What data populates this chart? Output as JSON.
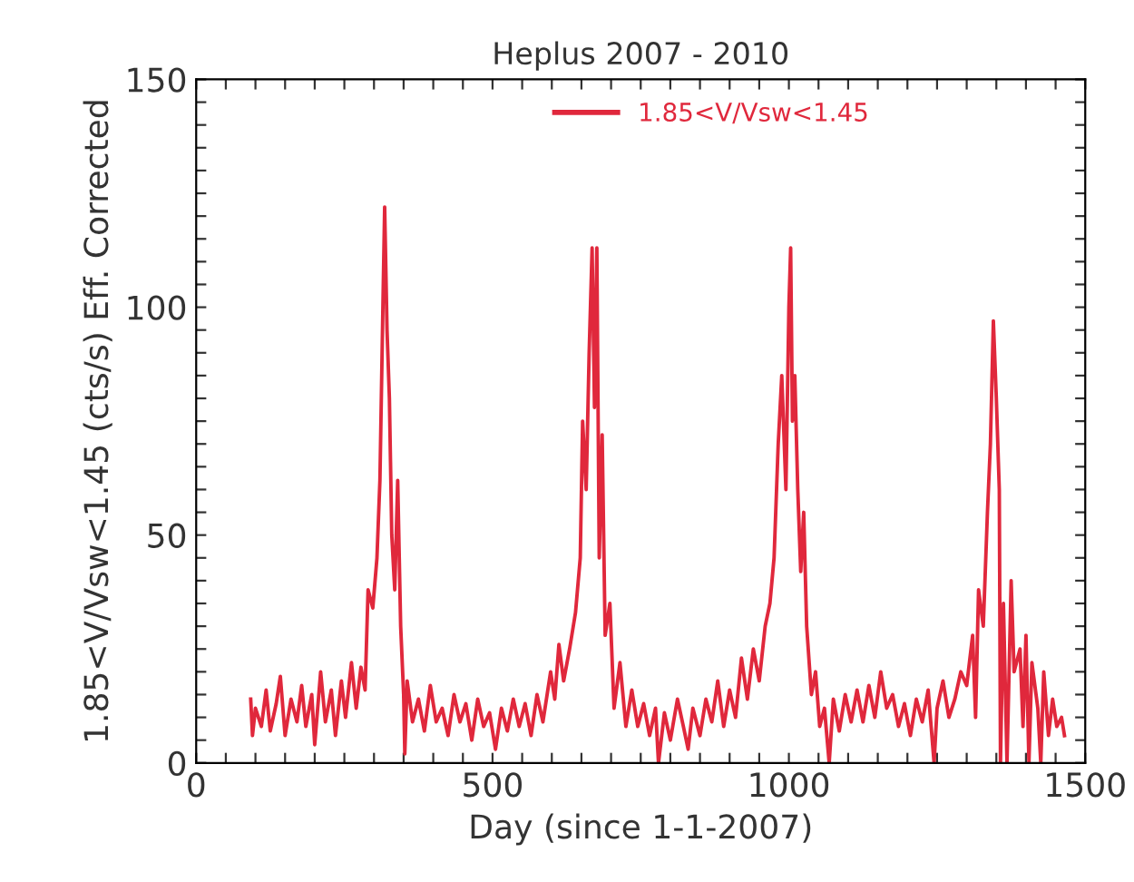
{
  "chart_data": {
    "type": "line",
    "title": "Heplus 2007 - 2010",
    "xlabel": "Day (since 1-1-2007)",
    "ylabel": "1.85<V/Vsw<1.45 (cts/s) Eff. Corrected",
    "xlim": [
      0,
      1500
    ],
    "ylim": [
      0,
      150
    ],
    "xticks": [
      0,
      {
        "value": 50,
        "label": null
      },
      {
        "value": 100,
        "label": null
      },
      {
        "value": 150,
        "label": null
      },
      {
        "value": 200,
        "label": null
      },
      {
        "value": 250,
        "label": null
      },
      {
        "value": 300,
        "label": null
      },
      {
        "value": 350,
        "label": null
      },
      {
        "value": 400,
        "label": null
      },
      {
        "value": 450,
        "label": null
      },
      500,
      {
        "value": 550,
        "label": null
      },
      {
        "value": 600,
        "label": null
      },
      {
        "value": 650,
        "label": null
      },
      {
        "value": 700,
        "label": null
      },
      {
        "value": 750,
        "label": null
      },
      {
        "value": 800,
        "label": null
      },
      {
        "value": 850,
        "label": null
      },
      {
        "value": 900,
        "label": null
      },
      {
        "value": 950,
        "label": null
      },
      1000,
      {
        "value": 1050,
        "label": null
      },
      {
        "value": 1100,
        "label": null
      },
      {
        "value": 1150,
        "label": null
      },
      {
        "value": 1200,
        "label": null
      },
      {
        "value": 1250,
        "label": null
      },
      {
        "value": 1300,
        "label": null
      },
      {
        "value": 1350,
        "label": null
      },
      {
        "value": 1400,
        "label": null
      },
      {
        "value": 1450,
        "label": null
      },
      1500
    ],
    "yticks": [
      0,
      {
        "value": 5,
        "label": null
      },
      {
        "value": 10,
        "label": null
      },
      {
        "value": 15,
        "label": null
      },
      {
        "value": 20,
        "label": null
      },
      {
        "value": 25,
        "label": null
      },
      {
        "value": 30,
        "label": null
      },
      {
        "value": 35,
        "label": null
      },
      {
        "value": 40,
        "label": null
      },
      {
        "value": 45,
        "label": null
      },
      50,
      {
        "value": 55,
        "label": null
      },
      {
        "value": 60,
        "label": null
      },
      {
        "value": 65,
        "label": null
      },
      {
        "value": 70,
        "label": null
      },
      {
        "value": 75,
        "label": null
      },
      {
        "value": 80,
        "label": null
      },
      {
        "value": 85,
        "label": null
      },
      {
        "value": 90,
        "label": null
      },
      {
        "value": 95,
        "label": null
      },
      100,
      {
        "value": 105,
        "label": null
      },
      {
        "value": 110,
        "label": null
      },
      {
        "value": 115,
        "label": null
      },
      {
        "value": 120,
        "label": null
      },
      {
        "value": 125,
        "label": null
      },
      {
        "value": 130,
        "label": null
      },
      {
        "value": 135,
        "label": null
      },
      {
        "value": 140,
        "label": null
      },
      {
        "value": 145,
        "label": null
      },
      150
    ],
    "grid": false,
    "legend": "top",
    "marker": "none",
    "line_style": "solid",
    "series": [
      {
        "name": "1.85<V/Vsw<1.45",
        "color": "#e0283c",
        "x": [
          92,
          95,
          100,
          110,
          118,
          125,
          135,
          142,
          150,
          160,
          170,
          178,
          185,
          195,
          200,
          210,
          218,
          228,
          235,
          245,
          252,
          262,
          270,
          278,
          285,
          290,
          298,
          305,
          310,
          315,
          318,
          322,
          326,
          330,
          335,
          340,
          345,
          350,
          352,
          356,
          365,
          375,
          385,
          395,
          405,
          415,
          425,
          435,
          445,
          455,
          465,
          475,
          485,
          495,
          505,
          515,
          525,
          535,
          545,
          555,
          565,
          575,
          585,
          598,
          605,
          612,
          620,
          630,
          640,
          648,
          652,
          658,
          663,
          668,
          672,
          676,
          680,
          685,
          690,
          698,
          705,
          715,
          725,
          735,
          745,
          755,
          765,
          775,
          780,
          790,
          800,
          812,
          822,
          830,
          838,
          850,
          860,
          870,
          880,
          890,
          900,
          910,
          920,
          930,
          940,
          950,
          960,
          968,
          975,
          982,
          988,
          995,
          1000,
          1003,
          1006,
          1010,
          1015,
          1020,
          1025,
          1030,
          1038,
          1045,
          1052,
          1060,
          1068,
          1075,
          1085,
          1095,
          1105,
          1115,
          1125,
          1135,
          1145,
          1155,
          1165,
          1175,
          1185,
          1195,
          1205,
          1215,
          1225,
          1235,
          1245,
          1250,
          1260,
          1270,
          1280,
          1290,
          1300,
          1310,
          1315,
          1320,
          1328,
          1335,
          1340,
          1345,
          1350,
          1355,
          1357,
          1362,
          1368,
          1375,
          1380,
          1390,
          1395,
          1400,
          1405,
          1410,
          1420,
          1425,
          1430,
          1438,
          1445,
          1452,
          1460,
          1465
        ],
        "values": [
          14,
          6,
          12,
          8,
          16,
          7,
          13,
          19,
          6,
          14,
          9,
          17,
          8,
          15,
          4,
          20,
          9,
          16,
          6,
          18,
          10,
          22,
          12,
          21,
          16,
          38,
          34,
          45,
          62,
          100,
          122,
          95,
          80,
          50,
          38,
          62,
          30,
          15,
          2,
          18,
          9,
          14,
          7,
          17,
          9,
          12,
          6,
          15,
          9,
          13,
          5,
          14,
          8,
          11,
          3,
          12,
          7,
          14,
          8,
          13,
          6,
          15,
          9,
          20,
          14,
          26,
          18,
          25,
          33,
          45,
          75,
          60,
          90,
          113,
          78,
          113,
          45,
          72,
          28,
          35,
          12,
          22,
          8,
          16,
          8,
          13,
          6,
          12,
          0,
          11,
          5,
          14,
          8,
          3,
          12,
          6,
          14,
          9,
          18,
          8,
          16,
          10,
          23,
          14,
          25,
          18,
          30,
          35,
          45,
          70,
          85,
          60,
          100,
          113,
          75,
          85,
          60,
          42,
          55,
          30,
          15,
          20,
          8,
          12,
          0,
          14,
          7,
          15,
          9,
          16,
          9,
          17,
          10,
          20,
          12,
          15,
          8,
          13,
          6,
          14,
          9,
          16,
          0,
          12,
          18,
          10,
          14,
          20,
          17,
          28,
          10,
          38,
          30,
          55,
          70,
          97,
          80,
          60,
          0,
          35,
          0,
          40,
          20,
          25,
          8,
          28,
          0,
          22,
          12,
          0,
          20,
          6,
          14,
          8,
          10,
          6
        ]
      }
    ]
  }
}
